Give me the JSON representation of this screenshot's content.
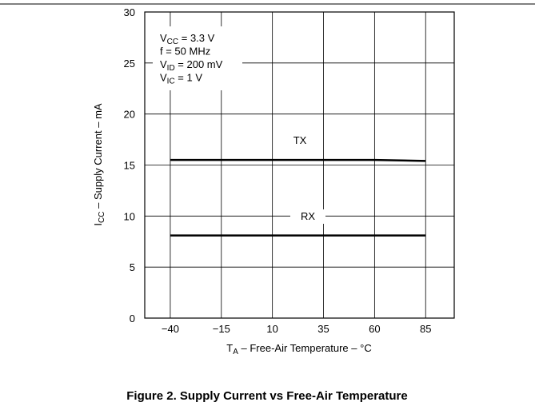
{
  "chart_data": {
    "type": "line",
    "title": "Figure 2. Supply Current vs Free-Air Temperature",
    "x_label": {
      "text": "T",
      "sub": "A",
      "rest": " – Free-Air Temperature –   °C"
    },
    "y_label": {
      "text": "I",
      "sub": "CC",
      "rest": " – Supply Current – mA"
    },
    "annotations": [
      {
        "text": "V",
        "sub": "CC",
        "rest": " = 3.3 V"
      },
      {
        "text": "f = 50 MHz",
        "sub": "",
        "rest": ""
      },
      {
        "text": "V",
        "sub": "ID",
        "rest": " = 200 mV"
      },
      {
        "text": "V",
        "sub": "IC",
        "rest": " = 1 V"
      }
    ],
    "x": [
      -40,
      -15,
      10,
      35,
      60,
      85
    ],
    "series": [
      {
        "name": "TX",
        "color": "#000000",
        "values": [
          15.5,
          15.5,
          15.5,
          15.5,
          15.5,
          15.4
        ]
      },
      {
        "name": "RX",
        "color": "#000000",
        "values": [
          8.1,
          8.1,
          8.1,
          8.1,
          8.1,
          8.1
        ]
      }
    ],
    "xlim": [
      -52.5,
      99
    ],
    "xticks": [
      {
        "value": -40,
        "label": "−40"
      },
      {
        "value": -15,
        "label": "−15"
      },
      10,
      35,
      60,
      85
    ],
    "ylim": [
      0,
      30
    ],
    "yticks": [
      0,
      5,
      10,
      15,
      20,
      25,
      30
    ],
    "grid": true
  }
}
